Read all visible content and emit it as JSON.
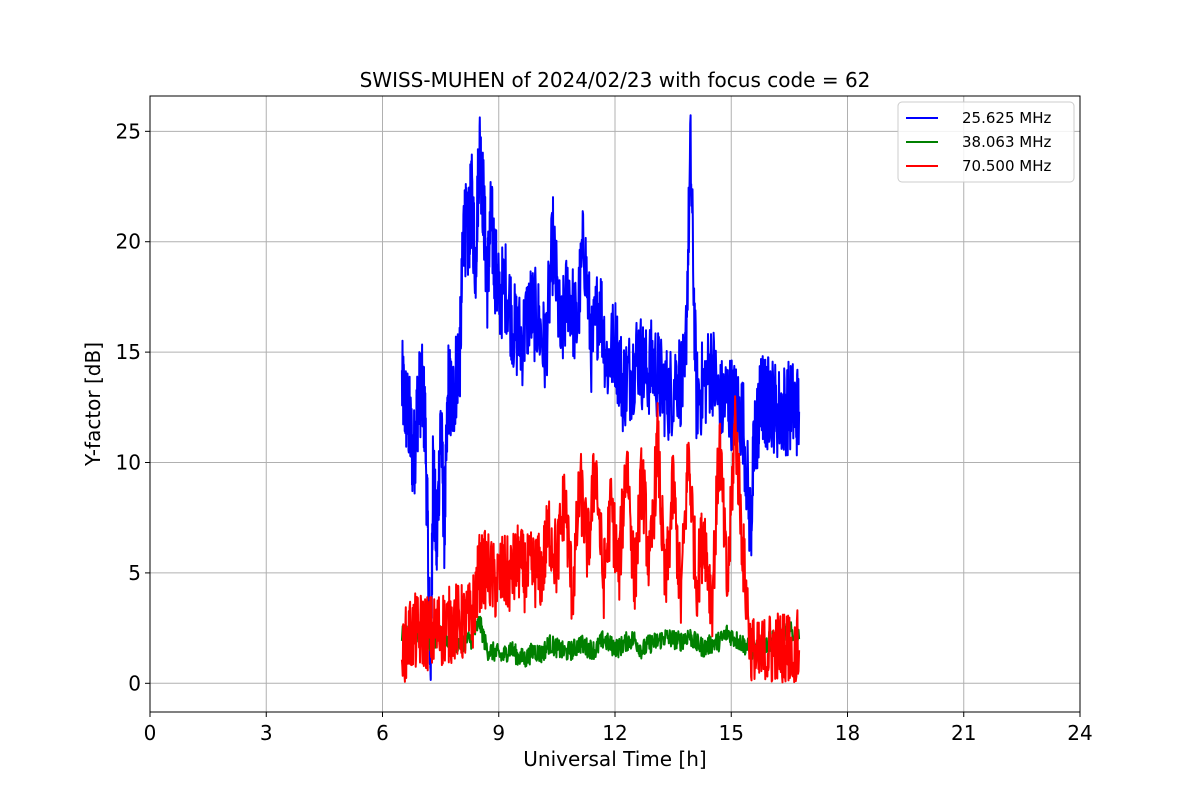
{
  "chart_data": {
    "type": "line",
    "title": "SWISS-MUHEN of 2024/02/23 with focus code = 62",
    "xlabel": "Universal Time [h]",
    "ylabel": "Y-factor [dB]",
    "xlim": [
      0,
      24
    ],
    "ylim": [
      -1.3,
      26.6
    ],
    "xticks": [
      0,
      3,
      6,
      9,
      12,
      15,
      18,
      21,
      24
    ],
    "yticks": [
      0,
      5,
      10,
      15,
      20,
      25
    ],
    "grid": true,
    "legend_position": "top-right",
    "series": [
      {
        "name": "25.625 MHz",
        "color": "#0000ff",
        "x": [
          6.5,
          6.6,
          6.7,
          6.8,
          6.9,
          7.0,
          7.1,
          7.2,
          7.25,
          7.3,
          7.4,
          7.5,
          7.6,
          7.7,
          7.8,
          7.9,
          8.0,
          8.1,
          8.2,
          8.3,
          8.4,
          8.5,
          8.6,
          8.7,
          8.8,
          8.9,
          9.0,
          9.2,
          9.4,
          9.6,
          9.8,
          10.0,
          10.2,
          10.4,
          10.6,
          10.8,
          11.0,
          11.2,
          11.4,
          11.6,
          11.8,
          12.0,
          12.2,
          12.4,
          12.6,
          12.8,
          13.0,
          13.2,
          13.4,
          13.6,
          13.8,
          13.95,
          14.1,
          14.3,
          14.5,
          14.7,
          14.9,
          15.1,
          15.3,
          15.5,
          15.6,
          15.7,
          15.8,
          15.9,
          16.0,
          16.2,
          16.4,
          16.6,
          16.75
        ],
        "y": [
          13.5,
          12.5,
          11.8,
          10.0,
          12.5,
          13.5,
          12.0,
          4.0,
          0.2,
          10.0,
          6.0,
          12.0,
          7.0,
          13.5,
          12.5,
          14.0,
          15.0,
          21.0,
          20.0,
          22.0,
          19.0,
          24.5,
          22.0,
          18.0,
          21.0,
          19.0,
          17.5,
          18.0,
          16.0,
          15.5,
          17.0,
          16.5,
          15.0,
          20.0,
          15.5,
          18.0,
          16.0,
          20.0,
          15.0,
          17.5,
          14.5,
          15.5,
          13.5,
          14.0,
          15.0,
          14.0,
          14.5,
          13.5,
          13.0,
          14.0,
          13.5,
          24.0,
          13.0,
          13.5,
          14.5,
          12.5,
          13.0,
          12.5,
          12.0,
          7.0,
          11.0,
          12.0,
          13.0,
          12.5,
          13.0,
          12.2,
          12.5,
          12.5,
          12.3
        ]
      },
      {
        "name": "38.063 MHz",
        "color": "#008000",
        "x": [
          6.5,
          6.7,
          6.9,
          7.1,
          7.3,
          7.5,
          7.7,
          7.9,
          8.1,
          8.3,
          8.5,
          8.7,
          8.9,
          9.1,
          9.3,
          9.5,
          9.7,
          9.9,
          10.1,
          10.3,
          10.5,
          10.7,
          10.9,
          11.1,
          11.3,
          11.5,
          11.7,
          11.9,
          12.1,
          12.3,
          12.5,
          12.7,
          12.9,
          13.1,
          13.3,
          13.5,
          13.7,
          13.9,
          14.1,
          14.3,
          14.5,
          14.7,
          14.9,
          15.1,
          15.3,
          15.5,
          15.7,
          15.9,
          16.1,
          16.3,
          16.5,
          16.75
        ],
        "y": [
          2.2,
          2.4,
          2.3,
          2.0,
          1.9,
          2.2,
          2.0,
          1.8,
          1.9,
          2.0,
          2.8,
          1.5,
          1.4,
          1.2,
          1.6,
          1.2,
          1.1,
          1.5,
          1.3,
          1.8,
          1.6,
          1.4,
          1.5,
          1.8,
          1.6,
          1.5,
          2.0,
          1.7,
          1.6,
          1.9,
          2.0,
          1.5,
          1.8,
          1.9,
          2.1,
          2.0,
          1.9,
          2.2,
          1.8,
          1.6,
          1.8,
          1.9,
          2.3,
          2.0,
          1.8,
          1.5,
          1.4,
          1.8,
          2.0,
          2.1,
          2.4,
          2.0
        ]
      },
      {
        "name": "70.500 MHz",
        "color": "#ff0000",
        "x": [
          6.5,
          6.7,
          6.9,
          7.1,
          7.3,
          7.5,
          7.7,
          7.9,
          8.1,
          8.3,
          8.5,
          8.7,
          8.9,
          9.1,
          9.3,
          9.5,
          9.7,
          9.9,
          10.1,
          10.3,
          10.5,
          10.7,
          10.9,
          11.1,
          11.3,
          11.5,
          11.7,
          11.9,
          12.1,
          12.3,
          12.5,
          12.7,
          12.9,
          13.1,
          13.3,
          13.5,
          13.7,
          13.9,
          14.1,
          14.3,
          14.5,
          14.7,
          14.9,
          15.1,
          15.3,
          15.5,
          15.7,
          15.9,
          16.1,
          16.3,
          16.5,
          16.75
        ],
        "y": [
          1.2,
          2.2,
          2.3,
          2.4,
          2.2,
          2.5,
          2.6,
          2.8,
          2.7,
          2.9,
          5.0,
          5.2,
          4.5,
          5.0,
          4.8,
          5.5,
          4.9,
          5.2,
          5.0,
          7.0,
          5.5,
          8.5,
          4.0,
          9.0,
          6.0,
          10.0,
          4.5,
          8.0,
          5.0,
          10.5,
          4.5,
          9.5,
          5.0,
          11.0,
          4.0,
          9.0,
          3.8,
          10.5,
          4.5,
          7.0,
          3.5,
          11.0,
          4.0,
          12.0,
          6.0,
          1.5,
          1.0,
          1.4,
          1.6,
          1.5,
          1.6,
          1.5
        ]
      }
    ]
  }
}
